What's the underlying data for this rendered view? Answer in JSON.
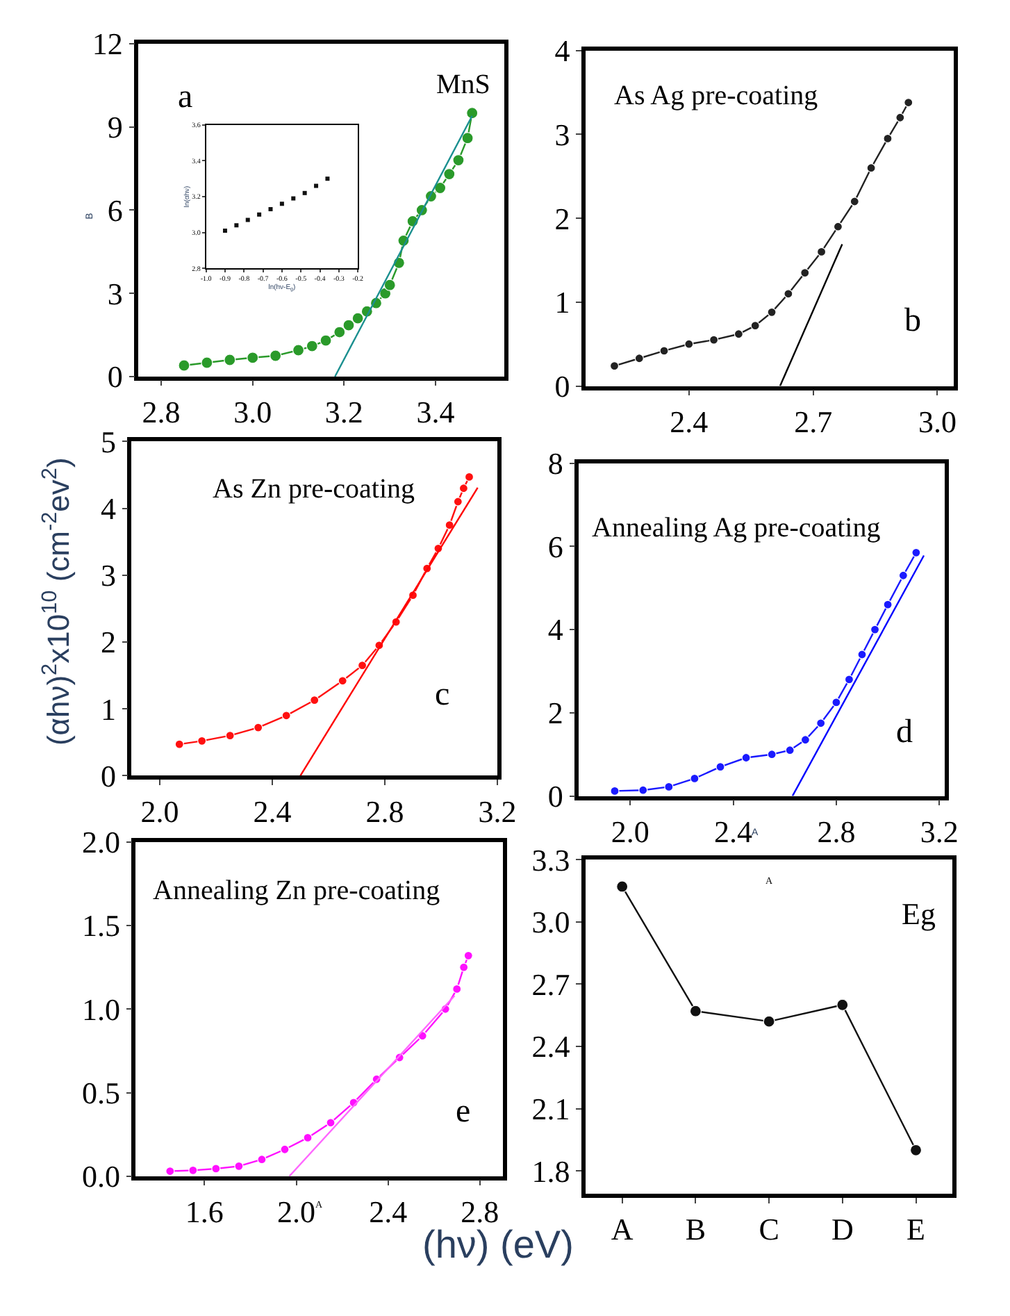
{
  "chart_data": [
    {
      "type": "line",
      "ylabel": "B",
      "annotations": [
        "a",
        "MnS"
      ],
      "marker": "circle",
      "xlim": [
        2.75,
        3.55
      ],
      "xticks": [
        2.8,
        {
          "value": 3.0,
          "label": "3.0"
        },
        3.2,
        3.4
      ],
      "ylim": [
        0,
        12
      ],
      "yticks": [
        0,
        3,
        6,
        9,
        12
      ],
      "series": [
        {
          "color": "#2a9a2a",
          "x": [
            2.85,
            2.9,
            2.95,
            3.0,
            3.05,
            3.1,
            3.13,
            3.16,
            3.19,
            3.21,
            3.23,
            3.25,
            3.27,
            3.29,
            3.3,
            3.32,
            3.33,
            3.35,
            3.37,
            3.39,
            3.41,
            3.43,
            3.45,
            3.47,
            3.48
          ],
          "values": [
            0.4,
            0.5,
            0.6,
            0.68,
            0.75,
            0.95,
            1.1,
            1.3,
            1.6,
            1.85,
            2.1,
            2.35,
            2.65,
            3.0,
            3.3,
            4.1,
            4.9,
            5.6,
            6.0,
            6.5,
            6.8,
            7.3,
            7.8,
            8.6,
            9.5
          ]
        },
        {
          "color": "#1a8f8f",
          "marker": "none",
          "x": [
            3.18,
            3.48
          ],
          "values": [
            0,
            9.4
          ]
        }
      ]
    },
    {
      "type": "scatter",
      "xlabel": "ln(hν-E$_{g}$)",
      "ylabel": "ln(αhν)",
      "marker": "square",
      "xlim": [
        -1.0,
        -0.2
      ],
      "xticks": [
        {
          "value": -1.0,
          "label": "-1.0"
        },
        -0.9,
        -0.8,
        -0.7,
        -0.6,
        -0.5,
        -0.4,
        -0.3,
        -0.2
      ],
      "ylim": [
        2.8,
        3.6
      ],
      "yticks": [
        2.8,
        {
          "value": 3.0,
          "label": "3.0"
        },
        3.2,
        3.4,
        3.6
      ],
      "series": [
        {
          "color": "#111111",
          "x": [
            -0.9,
            -0.84,
            -0.78,
            -0.72,
            -0.66,
            -0.6,
            -0.54,
            -0.48,
            -0.42,
            -0.36
          ],
          "values": [
            3.01,
            3.04,
            3.07,
            3.1,
            3.13,
            3.16,
            3.19,
            3.22,
            3.26,
            3.3
          ]
        }
      ]
    },
    {
      "type": "line",
      "annotations": [
        "As Ag pre-coating",
        "b"
      ],
      "marker": "circle",
      "xlim": [
        2.15,
        3.04
      ],
      "xticks": [
        2.4,
        2.7,
        {
          "value": 3.0,
          "label": "3.0"
        }
      ],
      "ylim": [
        0,
        4
      ],
      "yticks": [
        0,
        1,
        2,
        3,
        4
      ],
      "series": [
        {
          "color": "#222222",
          "x": [
            2.22,
            2.28,
            2.34,
            2.4,
            2.46,
            2.52,
            2.56,
            2.6,
            2.64,
            2.68,
            2.72,
            2.76,
            2.8,
            2.84,
            2.88,
            2.91,
            2.93
          ],
          "values": [
            0.24,
            0.33,
            0.42,
            0.5,
            0.55,
            0.62,
            0.72,
            0.88,
            1.1,
            1.35,
            1.6,
            1.9,
            2.2,
            2.6,
            2.95,
            3.2,
            3.38
          ]
        },
        {
          "color": "#000000",
          "marker": "none",
          "x": [
            2.62,
            2.77
          ],
          "values": [
            0,
            1.69
          ]
        }
      ]
    },
    {
      "type": "line",
      "ylabel": "(αhν)$^{2}$x10$^{10}$ (cm$^{-2}$ev$^{2}$)",
      "annotations": [
        "As Zn pre-coating",
        "c"
      ],
      "marker": "circle",
      "xlim": [
        1.9,
        3.2
      ],
      "xticks": [
        {
          "value": 2.0,
          "label": "2.0"
        },
        2.4,
        2.8,
        3.2
      ],
      "ylim": [
        0,
        5
      ],
      "yticks": [
        0,
        1,
        2,
        3,
        4,
        5
      ],
      "series": [
        {
          "color": "#ff1010",
          "x": [
            2.07,
            2.15,
            2.25,
            2.35,
            2.45,
            2.55,
            2.65,
            2.72,
            2.78,
            2.84,
            2.9,
            2.95,
            2.99,
            3.03,
            3.06,
            3.08,
            3.1
          ],
          "values": [
            0.47,
            0.52,
            0.6,
            0.72,
            0.9,
            1.13,
            1.42,
            1.65,
            1.95,
            2.3,
            2.7,
            3.1,
            3.4,
            3.75,
            4.1,
            4.3,
            4.47
          ]
        },
        {
          "color": "#ff0000",
          "marker": "none",
          "x": [
            2.5,
            3.13
          ],
          "values": [
            0,
            4.31
          ]
        }
      ]
    },
    {
      "type": "line",
      "xlabel": "A",
      "annotations": [
        "Annealing Ag pre-coating",
        "d"
      ],
      "marker": "circle",
      "xlim": [
        1.8,
        3.22
      ],
      "xticks": [
        {
          "value": 2.0,
          "label": "2.0"
        },
        2.4,
        2.8,
        3.2
      ],
      "ylim": [
        0,
        8
      ],
      "yticks": [
        0,
        2,
        4,
        6,
        8
      ],
      "series": [
        {
          "color": "#1a1aff",
          "x": [
            1.94,
            2.05,
            2.15,
            2.25,
            2.35,
            2.45,
            2.55,
            2.62,
            2.68,
            2.74,
            2.8,
            2.85,
            2.9,
            2.95,
            3.0,
            3.06,
            3.11
          ],
          "values": [
            0.12,
            0.14,
            0.22,
            0.42,
            0.7,
            0.92,
            1.0,
            1.1,
            1.35,
            1.75,
            2.25,
            2.8,
            3.4,
            4.0,
            4.6,
            5.3,
            5.85
          ]
        },
        {
          "color": "#0000ff",
          "marker": "none",
          "x": [
            2.63,
            3.14
          ],
          "values": [
            0,
            5.78
          ]
        }
      ]
    },
    {
      "type": "line",
      "xlabel": "(hν) (eV)",
      "annotations": [
        "Annealing Zn pre-coating",
        "e",
        "A"
      ],
      "marker": "circle",
      "xlim": [
        1.3,
        2.9
      ],
      "xticks": [
        1.6,
        {
          "value": 2.0,
          "label": "2.0"
        },
        2.4,
        2.8
      ],
      "ylim": [
        0,
        2
      ],
      "yticks": [
        {
          "value": 0,
          "label": "0.0"
        },
        0.5,
        {
          "value": 1,
          "label": "1.0"
        },
        1.5,
        {
          "value": 2,
          "label": "2.0"
        }
      ],
      "series": [
        {
          "color": "#ff10ff",
          "x": [
            1.45,
            1.55,
            1.65,
            1.75,
            1.85,
            1.95,
            2.05,
            2.15,
            2.25,
            2.35,
            2.45,
            2.55,
            2.65,
            2.7,
            2.73,
            2.75
          ],
          "values": [
            0.03,
            0.035,
            0.045,
            0.06,
            0.1,
            0.16,
            0.23,
            0.32,
            0.44,
            0.58,
            0.71,
            0.84,
            1.0,
            1.12,
            1.25,
            1.32
          ]
        },
        {
          "color": "#ff66ff",
          "marker": "none",
          "x": [
            1.97,
            2.69
          ],
          "values": [
            0,
            1.08
          ]
        }
      ]
    },
    {
      "type": "line",
      "annotations": [
        "Eg",
        "A"
      ],
      "marker": "circle",
      "categories": [
        "A",
        "B",
        "C",
        "D",
        "E"
      ],
      "ylim": [
        1.69,
        3.3
      ],
      "yticks": [
        1.8,
        2.1,
        2.4,
        2.7,
        {
          "value": 3.0,
          "label": "3.0"
        },
        3.3
      ],
      "series": [
        {
          "color": "#111111",
          "values": [
            3.17,
            2.57,
            2.52,
            2.6,
            1.9
          ]
        }
      ]
    }
  ]
}
